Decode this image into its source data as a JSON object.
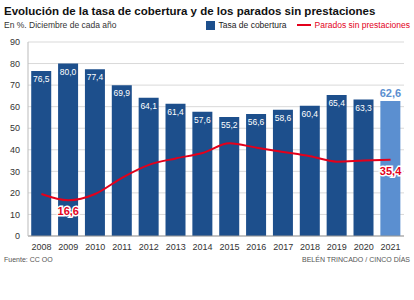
{
  "chart_data": {
    "type": "bar",
    "title": "Evolución de la tasa de cobertura y de los parados sin prestaciones",
    "subtitle": "En %. Diciembre de cada año",
    "source": "Fuente: CC OO",
    "credit": "BELÉN TRINCADO / CINCO DÍAS",
    "categories": [
      "2008",
      "2009",
      "2010",
      "2011",
      "2012",
      "2013",
      "2014",
      "2015",
      "2016",
      "2017",
      "2018",
      "2019",
      "2020",
      "2021"
    ],
    "series": [
      {
        "name": "Tasa de cobertura",
        "type": "bar",
        "colors": [
          "#1d4f8c",
          "#1d4f8c",
          "#1d4f8c",
          "#1d4f8c",
          "#1d4f8c",
          "#1d4f8c",
          "#1d4f8c",
          "#1d4f8c",
          "#1d4f8c",
          "#1d4f8c",
          "#1d4f8c",
          "#1d4f8c",
          "#1d4f8c",
          "#5b8fd0"
        ],
        "values": [
          76.5,
          80.0,
          77.4,
          69.9,
          64.1,
          61.4,
          57.6,
          55.2,
          56.6,
          58.6,
          60.4,
          65.4,
          63.3,
          62.6
        ],
        "value_labels": [
          "76,5",
          "80,0",
          "77,4",
          "69,9",
          "64,1",
          "61,4",
          "57,6",
          "55,2",
          "56,6",
          "58,6",
          "60,4",
          "65,4",
          "63,3",
          "62,6"
        ]
      },
      {
        "name": "Parados sin prestaciones",
        "type": "line",
        "color": "#e3001b",
        "values": [
          19.5,
          16.6,
          19.5,
          27.0,
          33.0,
          36.0,
          38.5,
          43.0,
          41.0,
          39.0,
          37.0,
          34.5,
          35.0,
          35.4
        ],
        "value_labels": [
          null,
          "16,6",
          null,
          null,
          null,
          null,
          null,
          null,
          null,
          null,
          null,
          null,
          null,
          "35,4"
        ]
      }
    ],
    "ylim": [
      0,
      90
    ],
    "yticks": [
      0,
      10,
      20,
      30,
      40,
      50,
      60,
      70,
      80,
      90
    ],
    "grid": true,
    "data_labels": true,
    "legend": "top"
  }
}
